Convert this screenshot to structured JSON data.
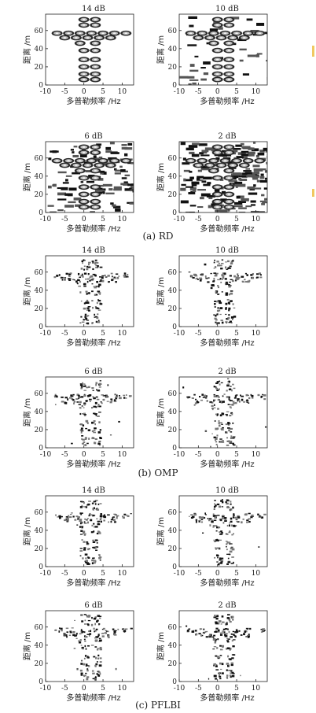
{
  "figure": {
    "groups": [
      {
        "caption": "(a) RD",
        "caption_id": "rd",
        "panels": [
          {
            "title": "14 dB",
            "noise": 0.0,
            "style": "rd"
          },
          {
            "title": "10 dB",
            "noise": 0.12,
            "style": "rd"
          },
          {
            "title": "6 dB",
            "noise": 0.35,
            "style": "rd"
          },
          {
            "title": "2 dB",
            "noise": 0.6,
            "style": "rd"
          }
        ]
      },
      {
        "caption": "(b) OMP",
        "caption_id": "omp",
        "panels": [
          {
            "title": "14 dB",
            "noise": 0.0,
            "style": "sparse"
          },
          {
            "title": "10 dB",
            "noise": 0.02,
            "style": "sparse"
          },
          {
            "title": "6 dB",
            "noise": 0.06,
            "style": "sparse"
          },
          {
            "title": "2 dB",
            "noise": 0.08,
            "style": "sparse"
          }
        ]
      },
      {
        "caption": "(c) PFLBI",
        "caption_id": "pflbi",
        "panels": [
          {
            "title": "14 dB",
            "noise": 0.0,
            "style": "sparse"
          },
          {
            "title": "10 dB",
            "noise": 0.03,
            "style": "sparse"
          },
          {
            "title": "6 dB",
            "noise": 0.05,
            "style": "sparse"
          },
          {
            "title": "2 dB",
            "noise": 0.04,
            "style": "sparse"
          }
        ]
      }
    ]
  },
  "chart_data": {
    "type": "heatmap",
    "xlabel": "多普勒频率 /Hz",
    "ylabel": "距离 /m",
    "x_ticks": [
      -10,
      -5,
      0,
      5,
      10
    ],
    "y_ticks": [
      0,
      20,
      40,
      60
    ],
    "xlim": [
      -10,
      13
    ],
    "ylim": [
      0,
      78
    ],
    "target_scatterers": [
      {
        "doppler": 0,
        "range": 72
      },
      {
        "doppler": 3,
        "range": 72
      },
      {
        "doppler": 0,
        "range": 66
      },
      {
        "doppler": 3,
        "range": 66
      },
      {
        "doppler": -7,
        "range": 57
      },
      {
        "doppler": -4,
        "range": 57
      },
      {
        "doppler": -1,
        "range": 57
      },
      {
        "doppler": 2,
        "range": 57
      },
      {
        "doppler": 5,
        "range": 57
      },
      {
        "doppler": 8,
        "range": 57
      },
      {
        "doppler": 11,
        "range": 57
      },
      {
        "doppler": -5,
        "range": 52
      },
      {
        "doppler": -2,
        "range": 52
      },
      {
        "doppler": 1,
        "range": 52
      },
      {
        "doppler": 4,
        "range": 52
      },
      {
        "doppler": 7,
        "range": 52
      },
      {
        "doppler": -1,
        "range": 46
      },
      {
        "doppler": 3,
        "range": 46
      },
      {
        "doppler": 0,
        "range": 38
      },
      {
        "doppler": 3,
        "range": 38
      },
      {
        "doppler": 0,
        "range": 28
      },
      {
        "doppler": 3,
        "range": 28
      },
      {
        "doppler": 0,
        "range": 20
      },
      {
        "doppler": 3,
        "range": 20
      },
      {
        "doppler": 0,
        "range": 12
      },
      {
        "doppler": 3,
        "range": 12
      },
      {
        "doppler": 0,
        "range": 6
      },
      {
        "doppler": 3,
        "range": 6
      }
    ]
  }
}
